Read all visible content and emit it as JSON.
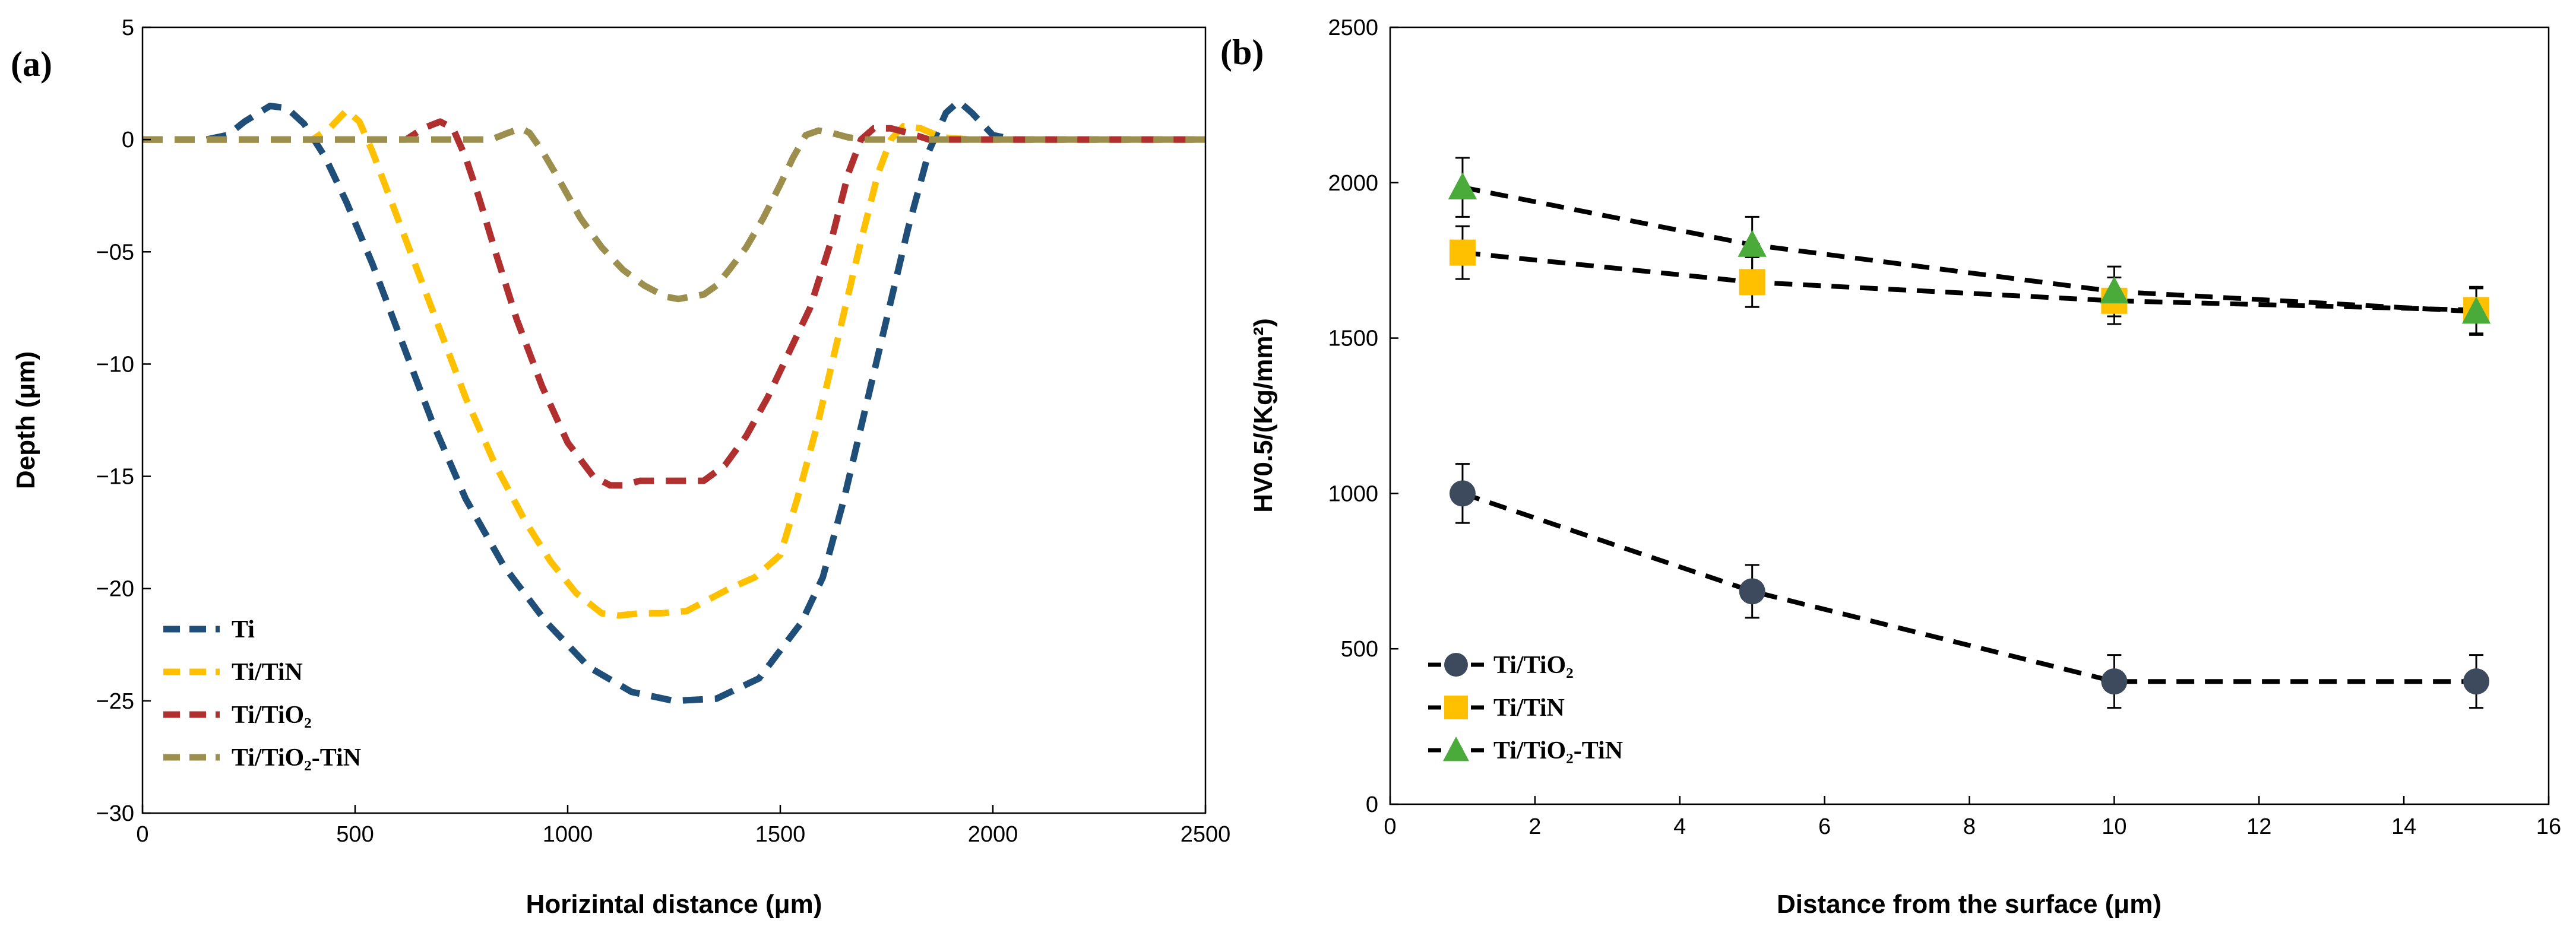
{
  "chart_data": [
    {
      "type": "line",
      "panel_label": "(a)",
      "title": "",
      "xlabel": "Horizintal distance (μm)",
      "ylabel": "Depth (μm)",
      "xlim": [
        0,
        2500
      ],
      "ylim": [
        -30,
        5
      ],
      "xticks": [
        0,
        500,
        1000,
        1500,
        2000,
        2500
      ],
      "yticks": [
        5,
        0,
        -5,
        -10,
        -15,
        -20,
        -25,
        -30
      ],
      "ytick_labels": [
        "5",
        "0",
        "−05",
        "−10",
        "−15",
        "−20",
        "−25",
        "−30"
      ],
      "grid": false,
      "legend_position": "bottom-left",
      "series": [
        {
          "name": "Ti",
          "color": "#1f4e79",
          "style": "dashed",
          "x": [
            0,
            150,
            200,
            240,
            300,
            340,
            380,
            430,
            480,
            540,
            600,
            680,
            760,
            850,
            950,
            1050,
            1150,
            1250,
            1350,
            1450,
            1550,
            1600,
            1650,
            1700,
            1750,
            1800,
            1850,
            1890,
            1920,
            1950,
            2000,
            2050,
            2100,
            2500
          ],
          "y": [
            0,
            0,
            0.2,
            0.8,
            1.5,
            1.4,
            0.7,
            -0.8,
            -2.8,
            -5.5,
            -8.5,
            -12.5,
            -16,
            -19,
            -21.5,
            -23.5,
            -24.6,
            -25,
            -24.9,
            -24,
            -21.5,
            -19.5,
            -16,
            -12,
            -8,
            -4,
            -0.5,
            1.2,
            1.7,
            1.2,
            0.2,
            0,
            0,
            0
          ]
        },
        {
          "name": "Ti/TiN",
          "color": "#ffc000",
          "style": "dashed",
          "x": [
            0,
            400,
            440,
            480,
            510,
            540,
            580,
            640,
            700,
            760,
            830,
            900,
            960,
            1020,
            1080,
            1120,
            1170,
            1220,
            1280,
            1330,
            1380,
            1440,
            1500,
            1540,
            1590,
            1640,
            1690,
            1730,
            1760,
            1790,
            1830,
            1880,
            1950,
            2500
          ],
          "y": [
            0,
            0,
            0.5,
            1.3,
            0.8,
            -0.5,
            -2.5,
            -5.5,
            -8.5,
            -11.5,
            -14.5,
            -17,
            -18.8,
            -20.2,
            -21.1,
            -21.2,
            -21.1,
            -21.1,
            -21,
            -20.5,
            -20,
            -19.5,
            -18.5,
            -16,
            -12.5,
            -8.5,
            -4.5,
            -1.5,
            0,
            0.6,
            0.5,
            0.1,
            0,
            0
          ]
        },
        {
          "name": "Ti/TiO₂",
          "color": "#b03030",
          "style": "dashed",
          "x": [
            0,
            620,
            660,
            700,
            730,
            760,
            790,
            830,
            880,
            940,
            1000,
            1060,
            1100,
            1130,
            1170,
            1220,
            1270,
            1320,
            1370,
            1420,
            1470,
            1520,
            1570,
            1620,
            1660,
            1690,
            1720,
            1760,
            1800,
            1850,
            2500
          ],
          "y": [
            0,
            0,
            0.5,
            0.8,
            0.5,
            -0.8,
            -2.5,
            -5,
            -8,
            -11,
            -13.5,
            -15,
            -15.4,
            -15.4,
            -15.2,
            -15.2,
            -15.2,
            -15.2,
            -14.5,
            -13.2,
            -11.5,
            -9.5,
            -7.5,
            -4.5,
            -1.5,
            0,
            0.5,
            0.5,
            0.3,
            0,
            0
          ]
        },
        {
          "name": "Ti/TiO₂-TiN",
          "color": "#9c8f4e",
          "style": "dashed",
          "x": [
            0,
            780,
            820,
            860,
            890,
            910,
            940,
            980,
            1030,
            1080,
            1130,
            1180,
            1230,
            1260,
            1290,
            1320,
            1350,
            1380,
            1420,
            1460,
            1500,
            1530,
            1560,
            1590,
            1620,
            1660,
            1700,
            1750,
            2500
          ],
          "y": [
            0,
            0,
            0,
            0.3,
            0.5,
            0.3,
            -0.5,
            -1.8,
            -3.5,
            -4.8,
            -5.8,
            -6.5,
            -7,
            -7.1,
            -7,
            -6.9,
            -6.5,
            -5.8,
            -4.8,
            -3.5,
            -2,
            -0.8,
            0.2,
            0.4,
            0.3,
            0.1,
            0,
            0,
            0
          ]
        }
      ]
    },
    {
      "type": "scatter",
      "panel_label": "(b)",
      "title": "",
      "xlabel": "Distance from the surface (μm)",
      "ylabel": "HV0.5/(Kg/mm²)",
      "xlim": [
        0,
        16
      ],
      "ylim": [
        0,
        2500
      ],
      "xticks": [
        0,
        2,
        4,
        6,
        8,
        10,
        12,
        14,
        16
      ],
      "yticks": [
        0,
        500,
        1000,
        1500,
        2000,
        2500
      ],
      "grid": false,
      "legend_position": "bottom-left",
      "series": [
        {
          "name": "Ti/TiO₂",
          "color": "#3d4a5e",
          "marker": "circle",
          "x": [
            1,
            5,
            10,
            15
          ],
          "y": [
            1000,
            685,
            395,
            395
          ],
          "error": [
            95,
            85,
            85,
            85
          ]
        },
        {
          "name": "Ti/TiN",
          "color": "#ffc000",
          "marker": "square",
          "x": [
            1,
            5,
            10,
            15
          ],
          "y": [
            1775,
            1680,
            1620,
            1590
          ],
          "error": [
            85,
            80,
            75,
            75
          ]
        },
        {
          "name": "Ti/TiO₂-TiN",
          "color": "#4aab3a",
          "marker": "triangle",
          "x": [
            1,
            5,
            10,
            15
          ],
          "y": [
            1985,
            1800,
            1650,
            1585
          ],
          "error": [
            95,
            90,
            80,
            75
          ]
        }
      ]
    }
  ]
}
